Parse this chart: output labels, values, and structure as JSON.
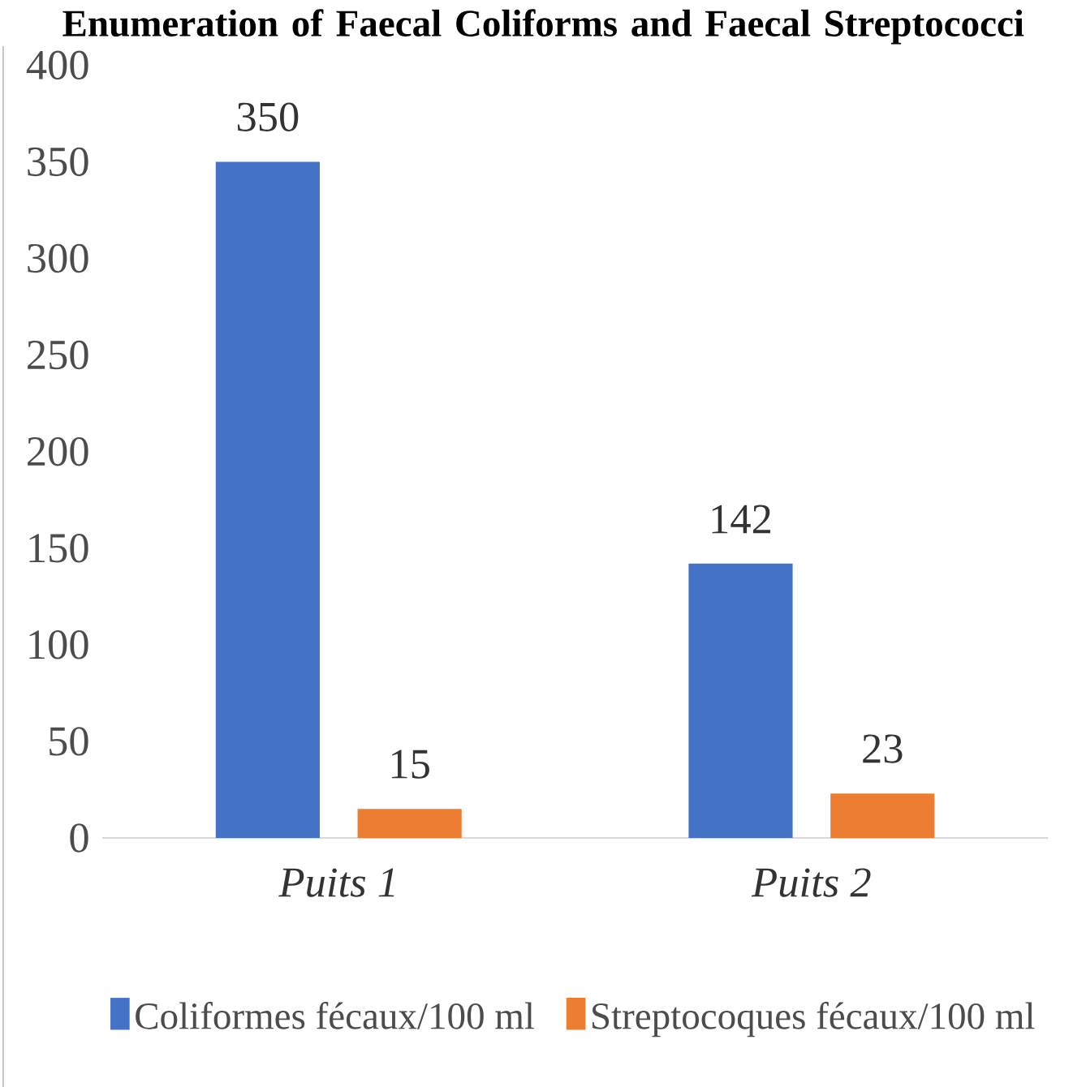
{
  "chart_data": {
    "type": "bar",
    "title": "Enumeration of Faecal Coliforms and Faecal Streptococci",
    "categories": [
      "Puits 1",
      "Puits 2"
    ],
    "series": [
      {
        "name": "Coliformes fécaux/100 ml",
        "color": "#4472c4",
        "values": [
          350,
          142
        ]
      },
      {
        "name": "Streptocoques fécaux/100 ml",
        "color": "#ed7d31",
        "values": [
          15,
          23
        ]
      }
    ],
    "ylim": [
      0,
      400
    ],
    "yticks": [
      0,
      50,
      100,
      150,
      200,
      250,
      300,
      350,
      400
    ],
    "legend": "bottom",
    "data_labels": true
  }
}
